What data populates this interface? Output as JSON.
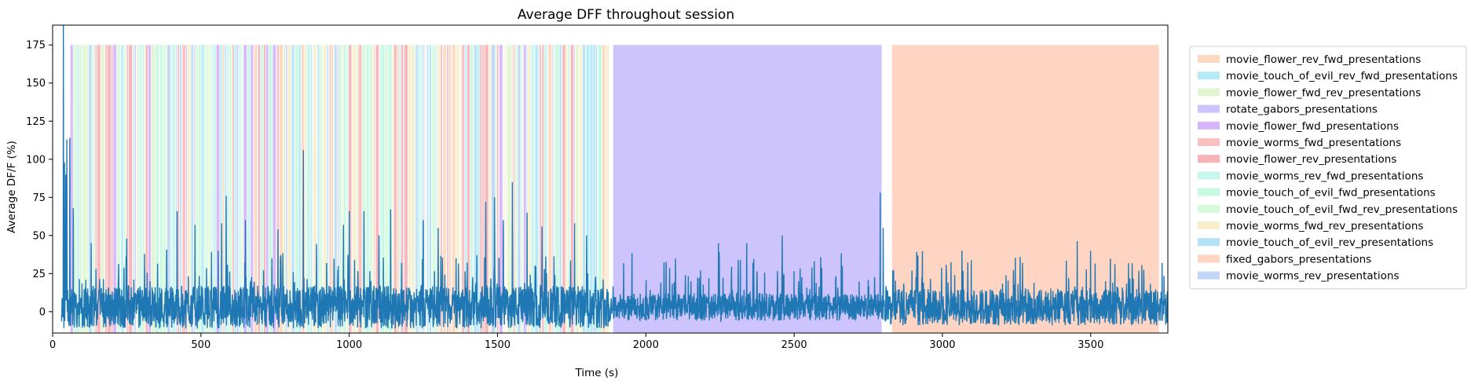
{
  "chart_data": {
    "type": "line",
    "title": "Average DFF throughout session",
    "xlabel": "Time (s)",
    "ylabel": "Average DF/F (%)",
    "xlim": [
      0,
      3760
    ],
    "ylim": [
      -14,
      188
    ],
    "xticks": [
      0,
      500,
      1000,
      1500,
      2000,
      2500,
      3000,
      3500
    ],
    "yticks": [
      0,
      25,
      50,
      75,
      100,
      125,
      150,
      175
    ],
    "grid": false,
    "legend_position": "right-outside",
    "trace_color": "#1f77b4",
    "trace": {
      "x_start": 30,
      "x_end": 3760,
      "baseline": 3,
      "peaks": [
        {
          "x": 36,
          "y": 188
        },
        {
          "x": 40,
          "y": 98
        },
        {
          "x": 44,
          "y": 90
        },
        {
          "x": 48,
          "y": 113
        },
        {
          "x": 58,
          "y": 114
        },
        {
          "x": 70,
          "y": 68
        },
        {
          "x": 130,
          "y": 45
        },
        {
          "x": 250,
          "y": 48
        },
        {
          "x": 420,
          "y": 66
        },
        {
          "x": 480,
          "y": 57
        },
        {
          "x": 570,
          "y": 58
        },
        {
          "x": 585,
          "y": 76
        },
        {
          "x": 650,
          "y": 60
        },
        {
          "x": 760,
          "y": 54
        },
        {
          "x": 845,
          "y": 106
        },
        {
          "x": 980,
          "y": 57
        },
        {
          "x": 1000,
          "y": 66
        },
        {
          "x": 1050,
          "y": 66
        },
        {
          "x": 1100,
          "y": 50
        },
        {
          "x": 1140,
          "y": 67
        },
        {
          "x": 1250,
          "y": 60
        },
        {
          "x": 1300,
          "y": 55
        },
        {
          "x": 1460,
          "y": 72
        },
        {
          "x": 1490,
          "y": 75
        },
        {
          "x": 1520,
          "y": 60
        },
        {
          "x": 1550,
          "y": 85
        },
        {
          "x": 1600,
          "y": 65
        },
        {
          "x": 1650,
          "y": 56
        },
        {
          "x": 1760,
          "y": 58
        },
        {
          "x": 1800,
          "y": 50
        },
        {
          "x": 2245,
          "y": 45
        },
        {
          "x": 2340,
          "y": 45
        },
        {
          "x": 2460,
          "y": 50
        },
        {
          "x": 2790,
          "y": 78
        },
        {
          "x": 2800,
          "y": 55
        },
        {
          "x": 3500,
          "y": 40
        }
      ],
      "noise_floor": -12
    },
    "stimulus_blocks": {
      "y_top": 175,
      "main_segments": [
        {
          "name": "rotate_gabors_presentations",
          "start": 1890,
          "end": 2795
        },
        {
          "name": "fixed_gabors_presentations",
          "start": 2830,
          "end": 3730
        }
      ],
      "striped_region": {
        "start": 60,
        "end": 1865
      }
    },
    "series": [
      {
        "name": "movie_flower_rev_fwd_presentations",
        "color": "#fdd9c0"
      },
      {
        "name": "movie_touch_of_evil_rev_fwd_presentations",
        "color": "#b5ebf5"
      },
      {
        "name": "movie_flower_fwd_rev_presentations",
        "color": "#e0f5d0"
      },
      {
        "name": "rotate_gabors_presentations",
        "color": "#cdc4fe"
      },
      {
        "name": "movie_flower_fwd_presentations",
        "color": "#d7b5fc"
      },
      {
        "name": "movie_worms_fwd_presentations",
        "color": "#f9c0c0"
      },
      {
        "name": "movie_flower_rev_presentations",
        "color": "#f8b3b8"
      },
      {
        "name": "movie_worms_rev_fwd_presentations",
        "color": "#c6f6ed"
      },
      {
        "name": "movie_touch_of_evil_fwd_presentations",
        "color": "#c7f9e1"
      },
      {
        "name": "movie_touch_of_evil_fwd_rev_presentations",
        "color": "#d6fbdc"
      },
      {
        "name": "movie_worms_fwd_rev_presentations",
        "color": "#f9efcf"
      },
      {
        "name": "movie_touch_of_evil_rev_presentations",
        "color": "#b5e1f7"
      },
      {
        "name": "fixed_gabors_presentations",
        "color": "#fed5c3"
      },
      {
        "name": "movie_worms_rev_presentations",
        "color": "#c1d6f6"
      }
    ]
  }
}
